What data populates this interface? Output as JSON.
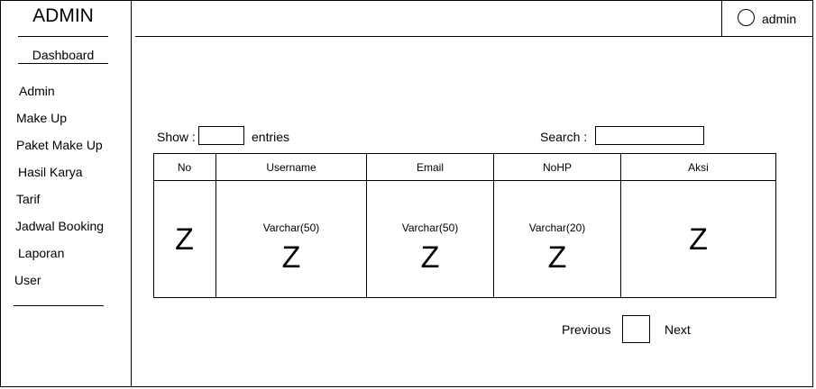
{
  "sidebar": {
    "brand": "ADMIN",
    "dashboard": "Dashboard",
    "items": [
      "Admin",
      "Make Up",
      "Paket Make Up",
      "Hasil Karya",
      "Tarif",
      "Jadwal Booking",
      "Laporan",
      "User"
    ]
  },
  "topbar": {
    "user_name": "admin",
    "avatar_icon": "user-circle-icon"
  },
  "controls": {
    "show_label": "Show :",
    "entries_label": "entries",
    "search_label": "Search :",
    "show_value": "",
    "search_value": ""
  },
  "table": {
    "columns": [
      "No",
      "Username",
      "Email",
      "NoHP",
      "Aksi"
    ],
    "row": {
      "no": {
        "symbol": "Z"
      },
      "username": {
        "type": "Varchar(50)",
        "symbol": "Z"
      },
      "email": {
        "type": "Varchar(50)",
        "symbol": "Z"
      },
      "nohp": {
        "type": "Varchar(20)",
        "symbol": "Z"
      },
      "aksi": {
        "symbol": "Z"
      }
    }
  },
  "pagination": {
    "previous": "Previous",
    "next": "Next",
    "current_page": ""
  }
}
